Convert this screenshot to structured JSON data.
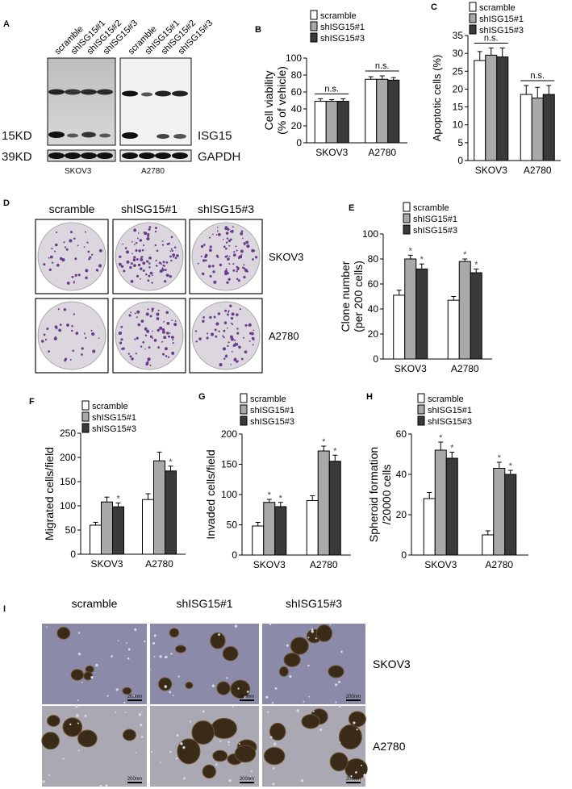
{
  "panelA": {
    "letter": "A",
    "lanes_left": [
      "scramble",
      "shISG15#1",
      "shISG15#2",
      "shISG15#3"
    ],
    "lanes_right": [
      "scramble",
      "shISG15#1",
      "shISG15#2",
      "shISG15#3"
    ],
    "mw_isg": "15KD",
    "mw_gapdh": "39KD",
    "protein_isg": "ISG15",
    "protein_gapdh": "GAPDH",
    "cell_left": "SKOV3",
    "cell_right": "A2780"
  },
  "panelD": {
    "letter": "D",
    "cols": [
      "scramble",
      "shISG15#1",
      "shISG15#3"
    ],
    "rows": [
      "SKOV3",
      "A2780"
    ]
  },
  "panelI": {
    "letter": "I",
    "cols": [
      "scramble",
      "shISG15#1",
      "shISG15#3"
    ],
    "rows": [
      "SKOV3",
      "A2780"
    ],
    "scale": "200nm"
  },
  "chart_data": [
    {
      "id": "B",
      "letter": "B",
      "type": "bar",
      "ylabel": "Cell viability\n(% of vehicle)",
      "ylim": [
        0,
        100
      ],
      "yticks": [
        0,
        20,
        40,
        60,
        80,
        100
      ],
      "categories": [
        "SKOV3",
        "A2780"
      ],
      "legend": [
        "scramble",
        "shISG15#1",
        "shISG15#3"
      ],
      "series": [
        {
          "name": "scramble",
          "values": [
            49,
            75
          ],
          "errors": [
            3,
            3
          ]
        },
        {
          "name": "shISG15#1",
          "values": [
            49,
            75
          ],
          "errors": [
            2,
            4
          ]
        },
        {
          "name": "shISG15#3",
          "values": [
            49,
            74
          ],
          "errors": [
            3,
            3
          ]
        }
      ],
      "annotations": [
        "n.s.",
        "n.s."
      ]
    },
    {
      "id": "C",
      "letter": "C",
      "type": "bar",
      "ylabel": "Apoptotic cells (%)",
      "ylim": [
        0,
        35
      ],
      "yticks": [
        0,
        5,
        10,
        15,
        20,
        25,
        30,
        35
      ],
      "categories": [
        "SKOV3",
        "A2780"
      ],
      "legend": [
        "scramble",
        "shISG15#1",
        "shISG15#3"
      ],
      "series": [
        {
          "name": "scramble",
          "values": [
            28,
            18.5
          ],
          "errors": [
            2.5,
            2.5
          ]
        },
        {
          "name": "shISG15#1",
          "values": [
            29.5,
            17.5
          ],
          "errors": [
            2,
            3
          ]
        },
        {
          "name": "shISG15#3",
          "values": [
            29,
            18.5
          ],
          "errors": [
            2.5,
            2.5
          ]
        }
      ],
      "annotations": [
        "n.s.",
        "n.s."
      ]
    },
    {
      "id": "E",
      "letter": "E",
      "type": "bar",
      "ylabel": "Clone number\n(per 200 cells)",
      "ylim": [
        0,
        100
      ],
      "yticks": [
        0,
        20,
        40,
        60,
        80,
        100
      ],
      "categories": [
        "SKOV3",
        "A2780"
      ],
      "legend": [
        "scramble",
        "shISG15#1",
        "shISG15#3"
      ],
      "series": [
        {
          "name": "scramble",
          "values": [
            51,
            47
          ],
          "errors": [
            4,
            3
          ],
          "stars": [
            false,
            false
          ]
        },
        {
          "name": "shISG15#1",
          "values": [
            80,
            78
          ],
          "errors": [
            3,
            2
          ],
          "stars": [
            true,
            true
          ]
        },
        {
          "name": "shISG15#3",
          "values": [
            72,
            69
          ],
          "errors": [
            4,
            3
          ],
          "stars": [
            true,
            true
          ]
        }
      ],
      "annotations": []
    },
    {
      "id": "F",
      "letter": "F",
      "type": "bar",
      "ylabel": "Migrated cells/field",
      "ylim": [
        0,
        250
      ],
      "yticks": [
        0,
        50,
        100,
        150,
        200,
        250
      ],
      "categories": [
        "SKOV3",
        "A2780"
      ],
      "legend": [
        "scramble",
        "shISG15#1",
        "shISG15#3"
      ],
      "series": [
        {
          "name": "scramble",
          "values": [
            60,
            113
          ],
          "errors": [
            6,
            12
          ],
          "stars": [
            false,
            false
          ]
        },
        {
          "name": "shISG15#1",
          "values": [
            108,
            193
          ],
          "errors": [
            10,
            18
          ],
          "stars": [
            false,
            false
          ]
        },
        {
          "name": "shISG15#3",
          "values": [
            98,
            172
          ],
          "errors": [
            8,
            10
          ],
          "stars": [
            true,
            true
          ]
        }
      ],
      "annotations": []
    },
    {
      "id": "G",
      "letter": "G",
      "type": "bar",
      "ylabel": "Invaded cells/field",
      "ylim": [
        0,
        200
      ],
      "yticks": [
        0,
        50,
        100,
        150,
        200
      ],
      "categories": [
        "SKOV3",
        "A2780"
      ],
      "legend": [
        "scramble",
        "shISG15#1",
        "shISG15#3"
      ],
      "series": [
        {
          "name": "scramble",
          "values": [
            48,
            90
          ],
          "errors": [
            6,
            8
          ],
          "stars": [
            false,
            false
          ]
        },
        {
          "name": "shISG15#1",
          "values": [
            87,
            172
          ],
          "errors": [
            5,
            8
          ],
          "stars": [
            true,
            true
          ]
        },
        {
          "name": "shISG15#3",
          "values": [
            80,
            155
          ],
          "errors": [
            7,
            10
          ],
          "stars": [
            true,
            true
          ]
        }
      ],
      "annotations": []
    },
    {
      "id": "H",
      "letter": "H",
      "type": "bar",
      "ylabel": "Spheroid  formation\n/20000 cells",
      "ylim": [
        0,
        60
      ],
      "yticks": [
        0,
        20,
        40,
        60
      ],
      "categories": [
        "SKOV3",
        "A2780"
      ],
      "legend": [
        "scramble",
        "shISG15#1",
        "shISG15#3"
      ],
      "series": [
        {
          "name": "scramble",
          "values": [
            28,
            10
          ],
          "errors": [
            3,
            2
          ],
          "stars": [
            false,
            false
          ]
        },
        {
          "name": "shISG15#1",
          "values": [
            52,
            43
          ],
          "errors": [
            4,
            3
          ],
          "stars": [
            true,
            true
          ]
        },
        {
          "name": "shISG15#3",
          "values": [
            48,
            40
          ],
          "errors": [
            3,
            2
          ],
          "stars": [
            true,
            true
          ]
        }
      ],
      "annotations": []
    }
  ]
}
